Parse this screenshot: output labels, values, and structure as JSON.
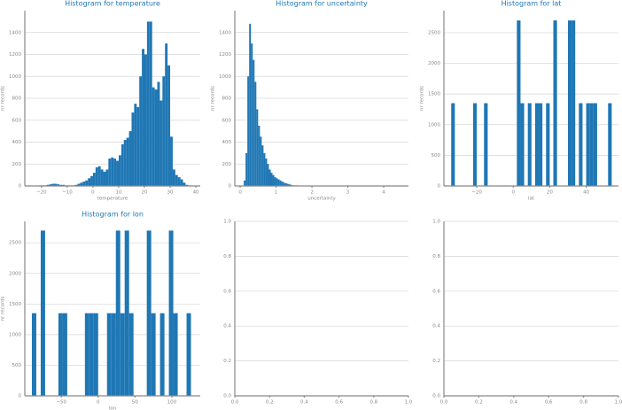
{
  "chart_data": [
    {
      "type": "histogram",
      "title": "Histogram for temperature",
      "x_label": "temperature",
      "y_label": "nr records",
      "color": "#1f77b4",
      "grid": true,
      "bins": [
        -23,
        -22,
        -21,
        -20,
        -19,
        -18,
        -17,
        -16,
        -15,
        -14,
        -13,
        -12,
        -11,
        -10,
        -9,
        -8,
        -7,
        -6,
        -5,
        -4,
        -3,
        -2,
        -1,
        0,
        1,
        2,
        3,
        4,
        5,
        6,
        7,
        8,
        9,
        10,
        11,
        12,
        13,
        14,
        15,
        16,
        17,
        18,
        19,
        20,
        21,
        22,
        23,
        24,
        25,
        26,
        27,
        28,
        29,
        30,
        31,
        32,
        33,
        34,
        35,
        36,
        37,
        38,
        39,
        40
      ],
      "values": [
        0,
        0,
        5,
        5,
        5,
        10,
        15,
        20,
        20,
        15,
        10,
        10,
        5,
        5,
        5,
        5,
        10,
        20,
        30,
        40,
        50,
        70,
        90,
        120,
        170,
        180,
        150,
        130,
        150,
        250,
        260,
        250,
        230,
        280,
        380,
        420,
        440,
        500,
        670,
        750,
        720,
        1000,
        1250,
        1200,
        1500,
        1500,
        900,
        880,
        950,
        780,
        1000,
        1300,
        1100,
        450,
        150,
        100,
        80,
        60,
        30,
        10,
        5,
        0,
        0
      ],
      "xlim": [
        -26.5,
        41.7
      ],
      "ylim": [
        0,
        1600
      ],
      "xticks": [
        {
          "value": -20,
          "label": "−20"
        },
        {
          "value": -10,
          "label": "−10"
        },
        0,
        10,
        20,
        30,
        40
      ],
      "yticks": [
        0,
        200,
        400,
        600,
        800,
        1000,
        1200,
        1400
      ]
    },
    {
      "type": "histogram",
      "title": "Histogram for uncertainty",
      "x_label": "uncertainty",
      "y_label": "nr records",
      "color": "#1f77b4",
      "grid": true,
      "bins": [
        0.1,
        0.15,
        0.2,
        0.25,
        0.3,
        0.35,
        0.4,
        0.45,
        0.5,
        0.55,
        0.6,
        0.65,
        0.7,
        0.75,
        0.8,
        0.85,
        0.9,
        0.95,
        1.0,
        1.05,
        1.1,
        1.15,
        1.2,
        1.25,
        1.3,
        1.35,
        1.4,
        1.45,
        1.5,
        1.55,
        1.6
      ],
      "values": [
        50,
        300,
        1000,
        1480,
        1300,
        1150,
        950,
        700,
        550,
        450,
        370,
        300,
        250,
        200,
        150,
        120,
        100,
        80,
        70,
        60,
        50,
        40,
        30,
        25,
        20,
        15,
        10,
        5,
        5,
        5
      ],
      "xlim": [
        -0.15,
        4.69
      ],
      "ylim": [
        0,
        1600
      ],
      "xticks": [
        0,
        1,
        2,
        3,
        4
      ],
      "yticks": [
        0,
        200,
        400,
        600,
        800,
        1000,
        1200,
        1400
      ]
    },
    {
      "type": "histogram",
      "title": "Histogram for lat",
      "x_label": "lat",
      "y_label": "nr records",
      "color": "#1f77b4",
      "grid": true,
      "bins": [
        -34,
        -32,
        -30,
        -28,
        -26,
        -24,
        -22,
        -20,
        -18,
        -16,
        -14,
        -12,
        -10,
        -8,
        -6,
        -4,
        -2,
        0,
        2,
        4,
        6,
        8,
        10,
        12,
        14,
        16,
        18,
        20,
        22,
        24,
        26,
        28,
        30,
        32,
        34,
        36,
        38,
        40,
        42,
        44,
        46,
        48,
        50,
        52,
        54
      ],
      "values": [
        1350,
        0,
        0,
        0,
        0,
        0,
        1350,
        0,
        0,
        1350,
        0,
        0,
        0,
        0,
        0,
        0,
        0,
        0,
        2700,
        1350,
        0,
        1350,
        0,
        1350,
        1350,
        0,
        1350,
        0,
        2700,
        0,
        0,
        0,
        2700,
        2700,
        0,
        1350,
        0,
        1350,
        1350,
        1350,
        0,
        0,
        0,
        1350
      ],
      "xlim": [
        -38,
        57.7
      ],
      "ylim": [
        0,
        2860
      ],
      "xticks": [
        {
          "value": -20,
          "label": "−20"
        },
        0,
        20,
        40
      ],
      "yticks": [
        0,
        500,
        1000,
        1500,
        2000,
        2500
      ]
    },
    {
      "type": "histogram",
      "title": "Histogram for lon",
      "x_label": "lon",
      "y_label": "nr records",
      "color": "#1f77b4",
      "grid": true,
      "bins": [
        -90,
        -84,
        -78,
        -72,
        -66,
        -60,
        -54,
        -48,
        -42,
        -36,
        -30,
        -24,
        -18,
        -12,
        -6,
        0,
        6,
        12,
        18,
        24,
        30,
        36,
        42,
        48,
        54,
        60,
        66,
        72,
        78,
        84,
        90,
        96,
        102,
        108,
        114,
        120,
        126
      ],
      "values": [
        1350,
        0,
        2700,
        0,
        0,
        0,
        1350,
        1350,
        0,
        0,
        0,
        0,
        1350,
        1350,
        1350,
        0,
        0,
        1350,
        1350,
        2700,
        1350,
        2700,
        1350,
        0,
        0,
        0,
        2700,
        1350,
        0,
        1350,
        0,
        2700,
        1350,
        0,
        0,
        1350
      ],
      "xlim": [
        -99.6,
        138.6
      ],
      "ylim": [
        0,
        2850
      ],
      "xticks": [
        {
          "value": -50,
          "label": "−50"
        },
        0,
        50,
        100
      ],
      "yticks": [
        0,
        500,
        1000,
        1500,
        2000,
        2500
      ]
    },
    {
      "type": "blank",
      "grid": true,
      "xlim": [
        0,
        1
      ],
      "ylim": [
        0,
        1
      ],
      "xticks": [
        {
          "value": 0,
          "label": "0.0"
        },
        {
          "value": 0.2,
          "label": "0.2"
        },
        {
          "value": 0.4,
          "label": "0.4"
        },
        {
          "value": 0.6,
          "label": "0.6"
        },
        {
          "value": 0.8,
          "label": "0.8"
        },
        {
          "value": 1,
          "label": "1.0"
        }
      ],
      "yticks": [
        {
          "value": 0,
          "label": "0.0"
        },
        {
          "value": 0.2,
          "label": "0.2"
        },
        {
          "value": 0.4,
          "label": "0.4"
        },
        {
          "value": 0.6,
          "label": "0.6"
        },
        {
          "value": 0.8,
          "label": "0.8"
        },
        {
          "value": 1,
          "label": "1.0"
        }
      ]
    },
    {
      "type": "blank",
      "grid": true,
      "xlim": [
        0,
        1
      ],
      "ylim": [
        0,
        1
      ],
      "xticks": [
        {
          "value": 0,
          "label": "0.0"
        },
        {
          "value": 0.2,
          "label": "0.2"
        },
        {
          "value": 0.4,
          "label": "0.4"
        },
        {
          "value": 0.6,
          "label": "0.6"
        },
        {
          "value": 0.8,
          "label": "0.8"
        },
        {
          "value": 1,
          "label": "1.0"
        }
      ],
      "yticks": [
        {
          "value": 0,
          "label": "0.0"
        },
        {
          "value": 0.2,
          "label": "0.2"
        },
        {
          "value": 0.4,
          "label": "0.4"
        },
        {
          "value": 0.6,
          "label": "0.6"
        },
        {
          "value": 0.8,
          "label": "0.8"
        },
        {
          "value": 1,
          "label": "1.0"
        }
      ]
    }
  ]
}
